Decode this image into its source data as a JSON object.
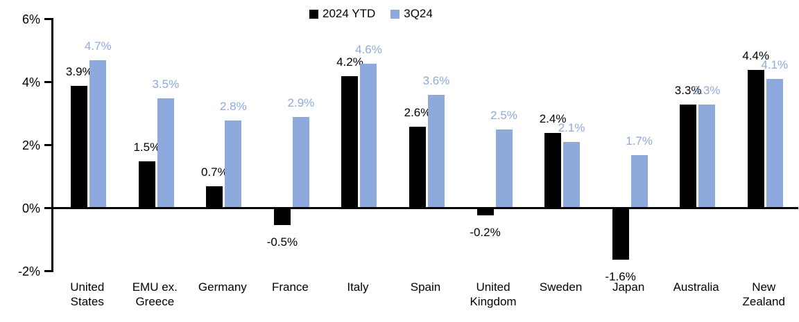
{
  "legend": {
    "position": "top-center",
    "items": [
      {
        "label": "2024 YTD",
        "color": "#000000"
      },
      {
        "label": "3Q24",
        "color": "#8EA9DB"
      }
    ]
  },
  "axes": {
    "y_tick_labels": [
      "6%",
      "4%",
      "2%",
      "0%",
      "-2%"
    ],
    "y_tick_values": [
      6,
      4,
      2,
      0,
      -2
    ]
  },
  "chart_data": {
    "type": "bar",
    "title": "",
    "xlabel": "",
    "ylabel": "",
    "ylim": [
      -2,
      6
    ],
    "grid": false,
    "legend_position": "top-center",
    "categories": [
      "United States",
      "EMU ex. Greece",
      "Germany",
      "France",
      "Italy",
      "Spain",
      "United Kingdom",
      "Sweden",
      "Japan",
      "Australia",
      "New Zealand"
    ],
    "series": [
      {
        "name": "2024 YTD",
        "color": "#000000",
        "label_color": "#000000",
        "values": [
          3.9,
          1.5,
          0.7,
          -0.5,
          4.2,
          2.6,
          -0.2,
          2.4,
          -1.6,
          3.3,
          4.4
        ],
        "labels": [
          "3.9%",
          "1.5%",
          "0.7%",
          "-0.5%",
          "4.2%",
          "2.6%",
          "-0.2%",
          "2.4%",
          "-1.6%",
          "3.3%",
          "4.4%"
        ]
      },
      {
        "name": "3Q24",
        "color": "#8EA9DB",
        "label_color": "#8EA9DB",
        "values": [
          4.7,
          3.5,
          2.8,
          2.9,
          4.6,
          3.6,
          2.5,
          2.1,
          1.7,
          3.3,
          4.1
        ],
        "labels": [
          "4.7%",
          "3.5%",
          "2.8%",
          "2.9%",
          "4.6%",
          "3.6%",
          "2.5%",
          "2.1%",
          "1.7%",
          "3.3%",
          "4.1%"
        ]
      }
    ]
  }
}
